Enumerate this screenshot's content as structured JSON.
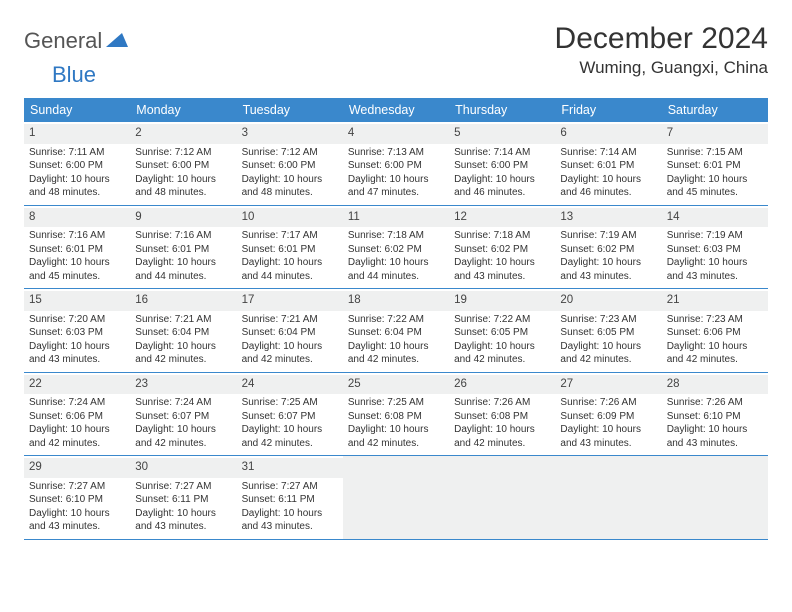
{
  "logo": {
    "text1": "General",
    "text2": "Blue"
  },
  "title": "December 2024",
  "location": "Wuming, Guangxi, China",
  "colors": {
    "header_bg": "#3a88cc",
    "header_text": "#ffffff",
    "daynum_bg": "#eff0f0",
    "border": "#3a88cc",
    "text": "#333333",
    "logo_gray": "#555555",
    "logo_blue": "#2f78c3"
  },
  "day_headers": [
    "Sunday",
    "Monday",
    "Tuesday",
    "Wednesday",
    "Thursday",
    "Friday",
    "Saturday"
  ],
  "weeks": [
    [
      {
        "n": 1,
        "sr": "7:11 AM",
        "ss": "6:00 PM",
        "dh": 10,
        "dm": 48
      },
      {
        "n": 2,
        "sr": "7:12 AM",
        "ss": "6:00 PM",
        "dh": 10,
        "dm": 48
      },
      {
        "n": 3,
        "sr": "7:12 AM",
        "ss": "6:00 PM",
        "dh": 10,
        "dm": 48
      },
      {
        "n": 4,
        "sr": "7:13 AM",
        "ss": "6:00 PM",
        "dh": 10,
        "dm": 47
      },
      {
        "n": 5,
        "sr": "7:14 AM",
        "ss": "6:00 PM",
        "dh": 10,
        "dm": 46
      },
      {
        "n": 6,
        "sr": "7:14 AM",
        "ss": "6:01 PM",
        "dh": 10,
        "dm": 46
      },
      {
        "n": 7,
        "sr": "7:15 AM",
        "ss": "6:01 PM",
        "dh": 10,
        "dm": 45
      }
    ],
    [
      {
        "n": 8,
        "sr": "7:16 AM",
        "ss": "6:01 PM",
        "dh": 10,
        "dm": 45
      },
      {
        "n": 9,
        "sr": "7:16 AM",
        "ss": "6:01 PM",
        "dh": 10,
        "dm": 44
      },
      {
        "n": 10,
        "sr": "7:17 AM",
        "ss": "6:01 PM",
        "dh": 10,
        "dm": 44
      },
      {
        "n": 11,
        "sr": "7:18 AM",
        "ss": "6:02 PM",
        "dh": 10,
        "dm": 44
      },
      {
        "n": 12,
        "sr": "7:18 AM",
        "ss": "6:02 PM",
        "dh": 10,
        "dm": 43
      },
      {
        "n": 13,
        "sr": "7:19 AM",
        "ss": "6:02 PM",
        "dh": 10,
        "dm": 43
      },
      {
        "n": 14,
        "sr": "7:19 AM",
        "ss": "6:03 PM",
        "dh": 10,
        "dm": 43
      }
    ],
    [
      {
        "n": 15,
        "sr": "7:20 AM",
        "ss": "6:03 PM",
        "dh": 10,
        "dm": 43
      },
      {
        "n": 16,
        "sr": "7:21 AM",
        "ss": "6:04 PM",
        "dh": 10,
        "dm": 42
      },
      {
        "n": 17,
        "sr": "7:21 AM",
        "ss": "6:04 PM",
        "dh": 10,
        "dm": 42
      },
      {
        "n": 18,
        "sr": "7:22 AM",
        "ss": "6:04 PM",
        "dh": 10,
        "dm": 42
      },
      {
        "n": 19,
        "sr": "7:22 AM",
        "ss": "6:05 PM",
        "dh": 10,
        "dm": 42
      },
      {
        "n": 20,
        "sr": "7:23 AM",
        "ss": "6:05 PM",
        "dh": 10,
        "dm": 42
      },
      {
        "n": 21,
        "sr": "7:23 AM",
        "ss": "6:06 PM",
        "dh": 10,
        "dm": 42
      }
    ],
    [
      {
        "n": 22,
        "sr": "7:24 AM",
        "ss": "6:06 PM",
        "dh": 10,
        "dm": 42
      },
      {
        "n": 23,
        "sr": "7:24 AM",
        "ss": "6:07 PM",
        "dh": 10,
        "dm": 42
      },
      {
        "n": 24,
        "sr": "7:25 AM",
        "ss": "6:07 PM",
        "dh": 10,
        "dm": 42
      },
      {
        "n": 25,
        "sr": "7:25 AM",
        "ss": "6:08 PM",
        "dh": 10,
        "dm": 42
      },
      {
        "n": 26,
        "sr": "7:26 AM",
        "ss": "6:08 PM",
        "dh": 10,
        "dm": 42
      },
      {
        "n": 27,
        "sr": "7:26 AM",
        "ss": "6:09 PM",
        "dh": 10,
        "dm": 43
      },
      {
        "n": 28,
        "sr": "7:26 AM",
        "ss": "6:10 PM",
        "dh": 10,
        "dm": 43
      }
    ],
    [
      {
        "n": 29,
        "sr": "7:27 AM",
        "ss": "6:10 PM",
        "dh": 10,
        "dm": 43
      },
      {
        "n": 30,
        "sr": "7:27 AM",
        "ss": "6:11 PM",
        "dh": 10,
        "dm": 43
      },
      {
        "n": 31,
        "sr": "7:27 AM",
        "ss": "6:11 PM",
        "dh": 10,
        "dm": 43
      },
      null,
      null,
      null,
      null
    ]
  ],
  "labels": {
    "sunrise": "Sunrise:",
    "sunset": "Sunset:",
    "daylight_prefix": "Daylight:",
    "hours_word": "hours",
    "and_word": "and",
    "minutes_word": "minutes."
  }
}
